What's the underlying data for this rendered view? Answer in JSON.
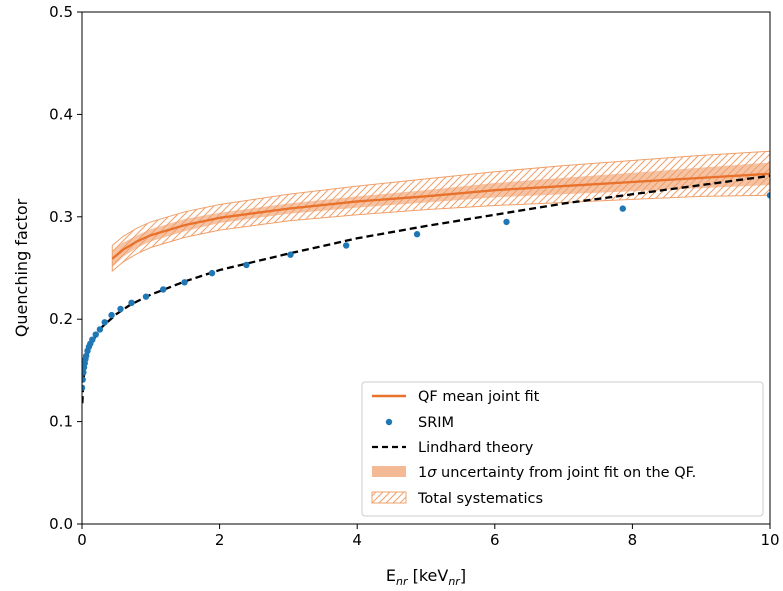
{
  "chart_data": {
    "type": "line",
    "xlabel": "E",
    "xlabel_sub": "nr",
    "xlabel_unit_pre": " [keV",
    "xlabel_unit_sub": "nr",
    "xlabel_unit_post": "]",
    "ylabel": "Quenching factor",
    "xlim": [
      0,
      10
    ],
    "ylim": [
      0,
      0.5
    ],
    "xticks": [
      0,
      2,
      4,
      6,
      8,
      10
    ],
    "yticks": [
      0.0,
      0.1,
      0.2,
      0.3,
      0.4,
      0.5
    ],
    "xtick_labels": [
      "0",
      "2",
      "4",
      "6",
      "8",
      "10"
    ],
    "ytick_labels": [
      "0.0",
      "0.1",
      "0.2",
      "0.3",
      "0.4",
      "0.5"
    ],
    "grid": false,
    "legend_position": "bottom-right",
    "series": [
      {
        "name": "QF mean joint fit",
        "kind": "line",
        "color": "#e8712b",
        "x": [
          0.44,
          0.6,
          0.8,
          1.0,
          1.5,
          2.0,
          3.0,
          4.0,
          5.0,
          6.0,
          7.0,
          8.0,
          9.0,
          10.0
        ],
        "y": [
          0.259,
          0.268,
          0.276,
          0.282,
          0.292,
          0.299,
          0.308,
          0.315,
          0.32,
          0.326,
          0.33,
          0.334,
          0.338,
          0.342
        ]
      },
      {
        "name": "SRIM",
        "kind": "scatter",
        "color": "#1f77b4",
        "x": [
          0.0,
          0.01,
          0.02,
          0.03,
          0.04,
          0.05,
          0.06,
          0.08,
          0.1,
          0.12,
          0.15,
          0.2,
          0.26,
          0.33,
          0.43,
          0.56,
          0.72,
          0.93,
          1.18,
          1.49,
          1.89,
          2.39,
          3.03,
          3.84,
          4.87,
          6.17,
          7.86,
          10.0
        ],
        "y": [
          0.133,
          0.141,
          0.148,
          0.153,
          0.157,
          0.161,
          0.164,
          0.169,
          0.173,
          0.176,
          0.18,
          0.185,
          0.19,
          0.197,
          0.204,
          0.21,
          0.216,
          0.222,
          0.229,
          0.236,
          0.245,
          0.253,
          0.263,
          0.272,
          0.283,
          0.295,
          0.308,
          0.321
        ]
      },
      {
        "name": "Lindhard theory",
        "kind": "dashed-line",
        "color": "#000000",
        "x": [
          0.005,
          0.02,
          0.05,
          0.1,
          0.2,
          0.3,
          0.5,
          0.7,
          1.0,
          1.5,
          2.0,
          3.0,
          4.0,
          5.0,
          6.0,
          7.0,
          8.0,
          9.0,
          10.0
        ],
        "y": [
          0.118,
          0.14,
          0.158,
          0.17,
          0.184,
          0.193,
          0.205,
          0.214,
          0.224,
          0.237,
          0.248,
          0.264,
          0.279,
          0.291,
          0.302,
          0.313,
          0.322,
          0.331,
          0.34
        ]
      }
    ],
    "bands": [
      {
        "name": "1σ uncertainty from joint fit on the QF.",
        "label_pre": "1",
        "label_sigma": "σ",
        "label_post": " uncertainty from joint fit on the QF.",
        "style": "fill",
        "color": "#f4b995",
        "x": [
          0.44,
          0.6,
          0.8,
          1.0,
          1.5,
          2.0,
          3.0,
          4.0,
          5.0,
          6.0,
          7.0,
          8.0,
          9.0,
          10.0
        ],
        "lower": [
          0.251,
          0.261,
          0.27,
          0.276,
          0.286,
          0.294,
          0.303,
          0.309,
          0.314,
          0.319,
          0.322,
          0.325,
          0.328,
          0.331
        ],
        "upper": [
          0.267,
          0.275,
          0.282,
          0.288,
          0.298,
          0.304,
          0.313,
          0.32,
          0.326,
          0.333,
          0.338,
          0.343,
          0.348,
          0.353
        ]
      },
      {
        "name": "Total systematics",
        "style": "hatch",
        "color": "#f0a06a",
        "x": [
          0.44,
          0.6,
          0.8,
          1.0,
          1.5,
          2.0,
          3.0,
          4.0,
          5.0,
          6.0,
          7.0,
          8.0,
          9.0,
          10.0
        ],
        "lower": [
          0.247,
          0.256,
          0.264,
          0.27,
          0.28,
          0.287,
          0.296,
          0.302,
          0.307,
          0.311,
          0.314,
          0.317,
          0.32,
          0.321
        ],
        "upper": [
          0.272,
          0.281,
          0.289,
          0.295,
          0.305,
          0.312,
          0.322,
          0.33,
          0.337,
          0.344,
          0.35,
          0.355,
          0.36,
          0.364
        ]
      }
    ]
  }
}
